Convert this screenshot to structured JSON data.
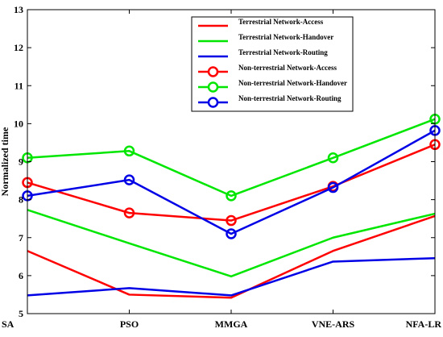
{
  "chart_data": {
    "type": "line",
    "title": "",
    "xlabel": "",
    "ylabel": "Normalized time",
    "categories": [
      "SA",
      "PSO",
      "MMGA",
      "VNE-ARS",
      "NFA-LR"
    ],
    "ylim": [
      5,
      13
    ],
    "yticks": [
      5,
      6,
      7,
      8,
      9,
      10,
      11,
      12,
      13
    ],
    "grid": false,
    "legend_position": "top-right",
    "series": [
      {
        "name": "Terrestrial Network-Access",
        "color": "#ff0000",
        "marker": "none",
        "values": [
          6.65,
          5.5,
          5.42,
          6.65,
          7.57
        ]
      },
      {
        "name": "Terrestrial Network-Handover",
        "color": "#00e600",
        "marker": "none",
        "values": [
          7.73,
          6.85,
          5.98,
          7.0,
          7.63
        ]
      },
      {
        "name": "Terrestrial Network-Routing",
        "color": "#0000e6",
        "marker": "none",
        "values": [
          5.48,
          5.67,
          5.48,
          6.37,
          6.46
        ]
      },
      {
        "name": "Non-terrestrial Network-Access",
        "color": "#ff0000",
        "marker": "circle",
        "values": [
          8.45,
          7.65,
          7.45,
          8.35,
          9.45
        ]
      },
      {
        "name": "Non-terrestrial Network-Handover",
        "color": "#00e600",
        "marker": "circle",
        "values": [
          9.1,
          9.28,
          8.1,
          9.1,
          10.12
        ]
      },
      {
        "name": "Non-terrestrial Network-Routing",
        "color": "#0000e6",
        "marker": "circle",
        "values": [
          8.1,
          8.52,
          7.1,
          8.32,
          9.82
        ]
      }
    ]
  }
}
